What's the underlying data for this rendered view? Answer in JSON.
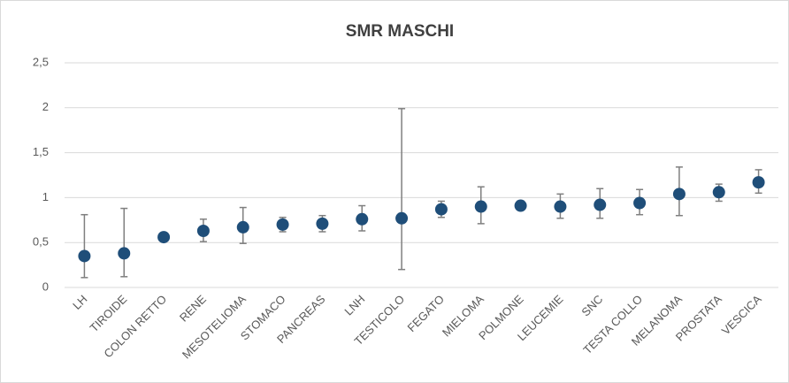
{
  "chart_data": {
    "type": "errorbar",
    "title": "SMR MASCHI",
    "categories": [
      "LH",
      "TIROIDE",
      "COLON RETTO",
      "RENE",
      "MESOTELIOMA",
      "STOMACO",
      "PANCREAS",
      "LNH",
      "TESTICOLO",
      "FEGATO",
      "MIELOMA",
      "POLMONE",
      "LEUCEMIE",
      "SNC",
      "TESTA COLLO",
      "MELANOMA",
      "PROSTATA",
      "VESCICA"
    ],
    "values": [
      0.35,
      0.38,
      0.56,
      0.63,
      0.67,
      0.7,
      0.71,
      0.76,
      0.77,
      0.87,
      0.9,
      0.91,
      0.9,
      0.92,
      0.94,
      1.04,
      1.06,
      1.17
    ],
    "ci_low": [
      0.11,
      0.12,
      0.54,
      0.51,
      0.49,
      0.62,
      0.62,
      0.63,
      0.2,
      0.78,
      0.71,
      0.88,
      0.77,
      0.77,
      0.81,
      0.8,
      0.96,
      1.05
    ],
    "ci_high": [
      0.81,
      0.88,
      0.58,
      0.76,
      0.89,
      0.78,
      0.8,
      0.91,
      1.99,
      0.96,
      1.12,
      0.94,
      1.04,
      1.1,
      1.09,
      1.34,
      1.15,
      1.31
    ],
    "color": "#1f4e79",
    "error_color": "#7f7f7f",
    "ylim": [
      0,
      2.5
    ],
    "yticks": [
      0,
      {
        "value": 0.5,
        "label": "0,5"
      },
      1,
      {
        "value": 1.5,
        "label": "1,5"
      },
      2,
      {
        "value": 2.5,
        "label": "2,5"
      }
    ],
    "grid": true
  }
}
